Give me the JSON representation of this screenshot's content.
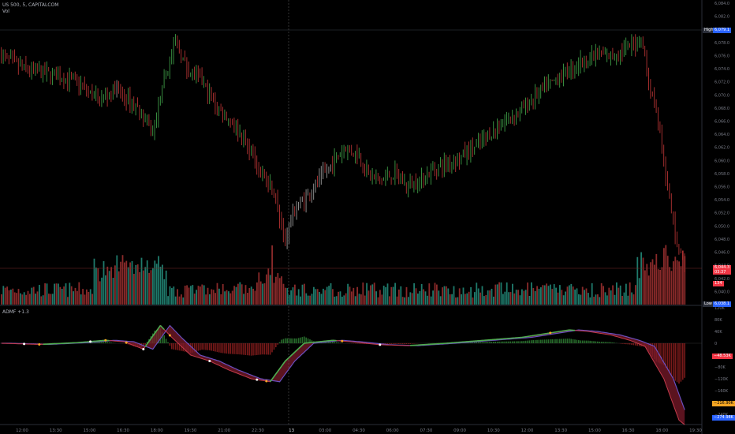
{
  "header": {
    "symbol_line": "US 500, 5, CAPITALCOM",
    "vol_label": "Vol"
  },
  "indicator": {
    "label": "ADMF +1.3"
  },
  "price_axis": {
    "ticks": [
      "6,084.0",
      "6,082.0",
      "6,080.0",
      "6,078.0",
      "6,076.0",
      "6,074.0",
      "6,072.0",
      "6,070.0",
      "6,068.0",
      "6,066.0",
      "6,064.0",
      "6,062.0",
      "6,060.0",
      "6,058.0",
      "6,056.0",
      "6,054.0",
      "6,052.0",
      "6,050.0",
      "6,048.0",
      "6,046.0",
      "6,044.0",
      "6,042.0",
      "6,040.0",
      "6,038.0"
    ],
    "tick_values": [
      6084,
      6082,
      6080,
      6078,
      6076,
      6074,
      6072,
      6070,
      6068,
      6066,
      6064,
      6062,
      6060,
      6058,
      6056,
      6054,
      6052,
      6050,
      6048,
      6046,
      6044,
      6042,
      6040,
      6038
    ]
  },
  "badges": {
    "high_label": "High",
    "high_value": "6,079.1",
    "last_price": "6,044.3",
    "last_time": "03:37",
    "vol_value": "134",
    "low_label": "Low",
    "low_value": "6,038.1"
  },
  "indicator_axis": {
    "ticks": [
      "120K",
      "80K",
      "40K",
      "0",
      "−40K",
      "−80K",
      "−120K",
      "−160K",
      "−200K",
      "−240K"
    ],
    "tick_values": [
      120000,
      80000,
      40000,
      0,
      -40000,
      -80000,
      -120000,
      -160000,
      -200000,
      -240000
    ],
    "badge_red": "−48.53K",
    "badge_orange": "−216.90K",
    "badge_blue": "−274.98K"
  },
  "time_axis": {
    "labels": [
      "12:00",
      "13:30",
      "15:00",
      "16:30",
      "18:00",
      "19:30",
      "21:00",
      "22:30",
      "13",
      "03:00",
      "04:30",
      "06:00",
      "07:30",
      "09:00",
      "10:30",
      "12:00",
      "13:30",
      "15:00",
      "16:30",
      "18:00",
      "19:30"
    ]
  },
  "colors": {
    "up": "#3d9a45",
    "down": "#b23232",
    "neutral": "#9a9a9a",
    "vol_up": "#1f7a6b",
    "vol_down": "#8a2a2a",
    "accent_blue": "#2962ff",
    "accent_red": "#f23645",
    "accent_orange": "#f5a623"
  },
  "chart_data": {
    "type": "candlestick",
    "price_keypoints": [
      [
        0,
        6076
      ],
      [
        12,
        6074
      ],
      [
        28,
        6073
      ],
      [
        40,
        6072
      ],
      [
        52,
        6069
      ],
      [
        60,
        6071
      ],
      [
        72,
        6068
      ],
      [
        80,
        6064
      ],
      [
        86,
        6072
      ],
      [
        92,
        6078
      ],
      [
        98,
        6074
      ],
      [
        106,
        6072
      ],
      [
        114,
        6068
      ],
      [
        122,
        6066
      ],
      [
        130,
        6062
      ],
      [
        138,
        6058
      ],
      [
        144,
        6055
      ],
      [
        150,
        6048
      ],
      [
        154,
        6052
      ],
      [
        160,
        6054
      ],
      [
        168,
        6057
      ],
      [
        176,
        6060
      ],
      [
        182,
        6062
      ],
      [
        188,
        6061
      ],
      [
        194,
        6058
      ],
      [
        200,
        6057
      ],
      [
        208,
        6058
      ],
      [
        214,
        6056
      ],
      [
        222,
        6057
      ],
      [
        230,
        6059
      ],
      [
        240,
        6060
      ],
      [
        250,
        6062
      ],
      [
        258,
        6064
      ],
      [
        266,
        6066
      ],
      [
        276,
        6068
      ],
      [
        286,
        6071
      ],
      [
        296,
        6073
      ],
      [
        306,
        6075
      ],
      [
        314,
        6076
      ],
      [
        322,
        6076
      ],
      [
        330,
        6077
      ],
      [
        336,
        6078
      ],
      [
        339,
        6078
      ],
      [
        342,
        6072
      ],
      [
        346,
        6068
      ],
      [
        350,
        6060
      ],
      [
        354,
        6052
      ],
      [
        358,
        6046
      ],
      [
        361,
        6044
      ]
    ],
    "volume": {
      "ymax": 1000
    },
    "admf": {
      "ylim": [
        -280000,
        130000
      ]
    }
  }
}
